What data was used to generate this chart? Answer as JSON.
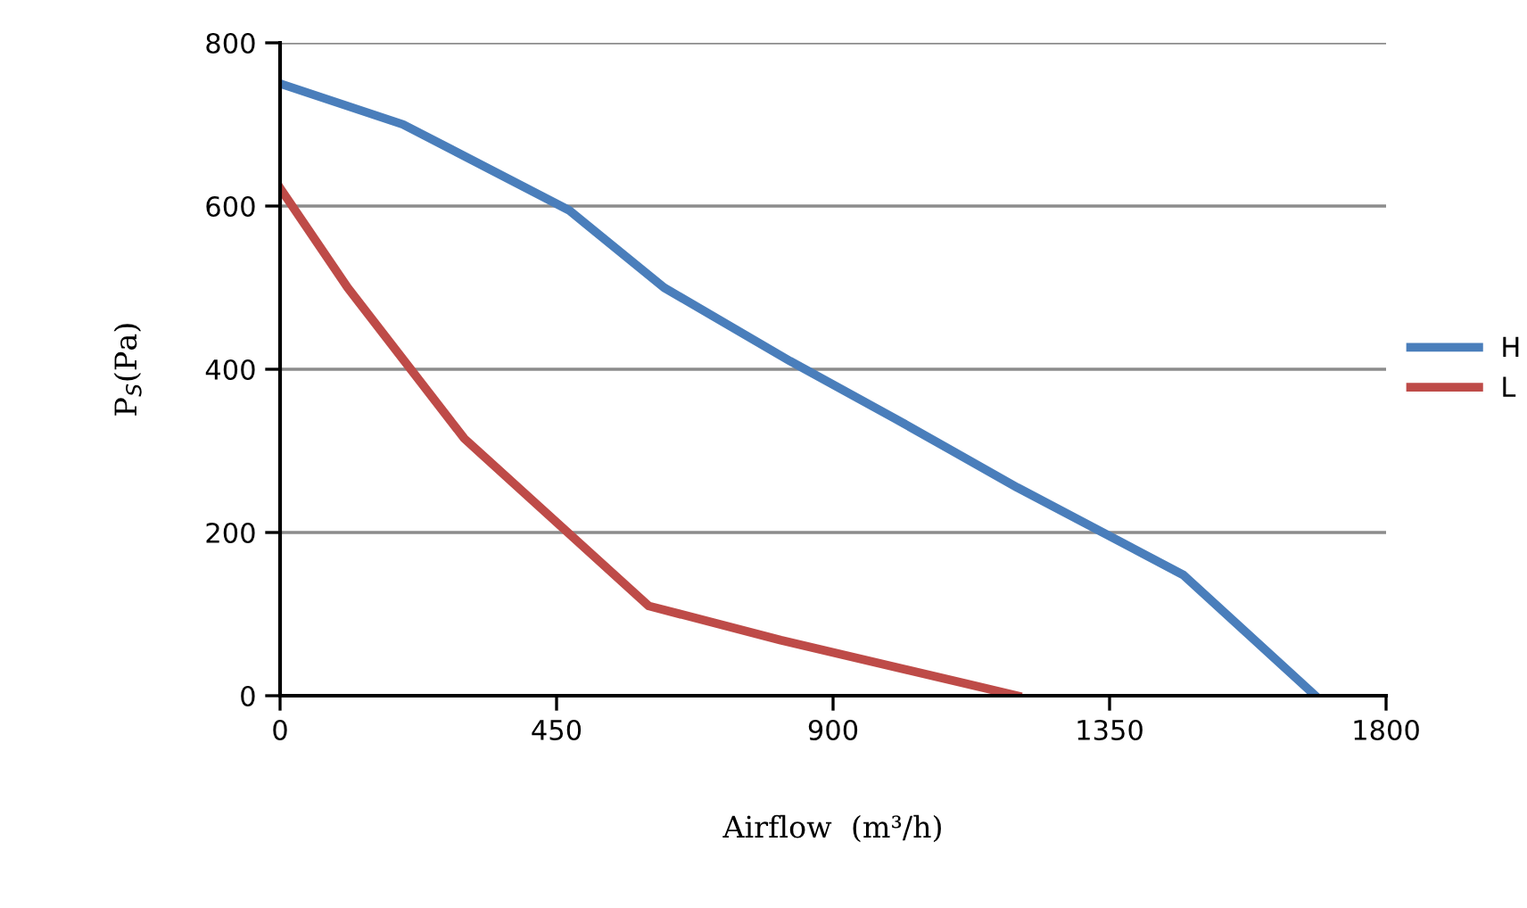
{
  "chart_data": {
    "type": "line",
    "xlabel": "Airflow  (m³/h)",
    "ylabel": "P$_{S}$(Pa)",
    "xlim": [
      0,
      1800
    ],
    "xticks": [
      0,
      450,
      900,
      1350,
      1800
    ],
    "ylim": [
      0,
      800
    ],
    "yticks": [
      0,
      200,
      400,
      600,
      800
    ],
    "grid": "y",
    "legend": "right",
    "line_style": "solid",
    "series": [
      {
        "name": "H",
        "color": "#4a7ebb",
        "x": [
          0,
          200,
          470,
          625,
          830,
          1000,
          1200,
          1470,
          1685
        ],
        "values": [
          750,
          700,
          595,
          500,
          410,
          340,
          255,
          148,
          0
        ]
      },
      {
        "name": "L",
        "color": "#be4b48",
        "x": [
          0,
          110,
          300,
          600,
          815,
          1200
        ],
        "values": [
          622,
          500,
          315,
          110,
          68,
          0
        ]
      }
    ]
  }
}
